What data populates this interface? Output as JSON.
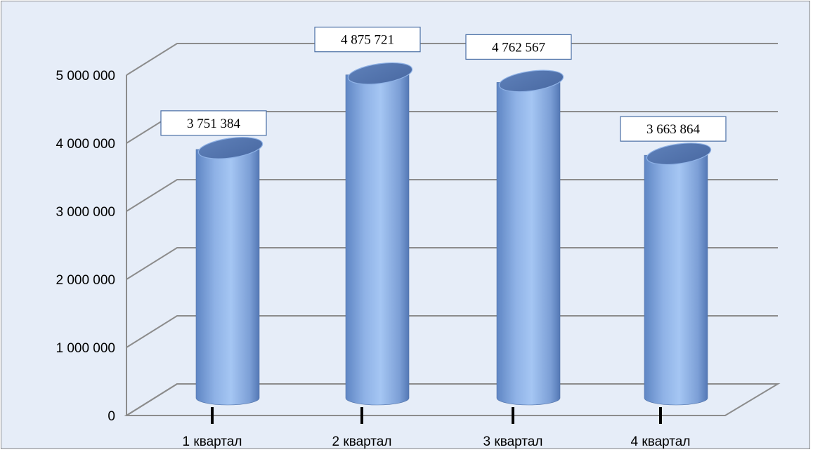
{
  "chart_data": {
    "type": "bar",
    "style": "3d-cylinder",
    "categories": [
      "1 квартал",
      "2 квартал",
      "3 квартал",
      "4 квартал"
    ],
    "values": [
      3751384,
      4875721,
      4762567,
      3663864
    ],
    "data_labels": [
      "3 751 384",
      "4 875 721",
      "4 762 567",
      "3 663 864"
    ],
    "y_ticks": [
      "0",
      "1 000 000",
      "2 000 000",
      "3 000 000",
      "4 000 000",
      "5 000 000"
    ],
    "ylim": [
      0,
      5000000
    ],
    "grid": true,
    "legend": "none",
    "colors": {
      "background": "#e6edf8",
      "bar": "#8fb2e6",
      "gridline": "#8c8c8c",
      "label_border": "#4a6fa5"
    }
  }
}
